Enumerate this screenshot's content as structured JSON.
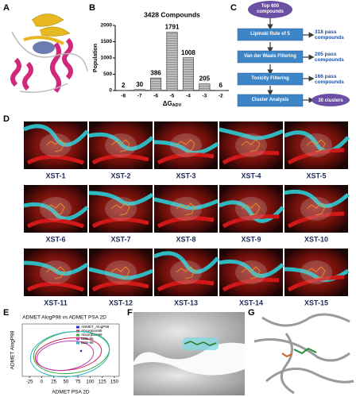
{
  "panel_labels": [
    "A",
    "B",
    "C",
    "D",
    "E",
    "F",
    "G"
  ],
  "chart_data": [
    {
      "type": "bar",
      "title": "3428 Compounds",
      "ylabel": "Population",
      "xlabel": {
        "text": "ΔG",
        "subscript": "ADV"
      },
      "categories": [
        "-8",
        "-7",
        "-6",
        "-5",
        "-4",
        "-3",
        "-2"
      ],
      "values": [
        2,
        30,
        386,
        1791,
        1008,
        205,
        6
      ],
      "color": "#8c8c8c",
      "ylim": [
        0,
        2000
      ],
      "yticks": [
        0,
        500,
        1000,
        1500,
        2000
      ]
    },
    {
      "type": "ellipse",
      "title": "ADMET AlogP98 vs ADMET PSA 2D",
      "xlabel": "ADMET PSA 2D",
      "ylabel": "ADMET AlogP98",
      "xlim": [
        -40,
        160
      ],
      "xticks": [
        -25,
        0,
        25,
        50,
        75,
        100,
        125,
        150
      ],
      "series": [
        {
          "name": "ADMET_AlogP98",
          "color": "#2b2bd0"
        },
        {
          "name": "Absorption95",
          "color": "#d0204a"
        },
        {
          "name": "Absorption99",
          "color": "#3aa83a"
        },
        {
          "name": "BBB-95",
          "color": "#c040c0"
        },
        {
          "name": "BBB-99",
          "color": "#30b8c8"
        }
      ]
    }
  ],
  "flowchart": {
    "start": "Top 600 compounds",
    "steps": [
      {
        "label": "Lipinski Rule of 5",
        "result": "318 pass compounds"
      },
      {
        "label": "Van der Waals Filtering",
        "result": "205 pass compounds"
      },
      {
        "label": "Toxicity Filtering",
        "result": "166 pass compounds"
      },
      {
        "label": "Cluster Analysis",
        "result": "30 clusters"
      }
    ]
  },
  "docking": {
    "labels": [
      "XST-1",
      "XST-2",
      "XST-3",
      "XST-4",
      "XST-5",
      "XST-6",
      "XST-7",
      "XST-8",
      "XST-9",
      "XST-10",
      "XST-11",
      "XST-12",
      "XST-13",
      "XST-14",
      "XST-15"
    ]
  }
}
